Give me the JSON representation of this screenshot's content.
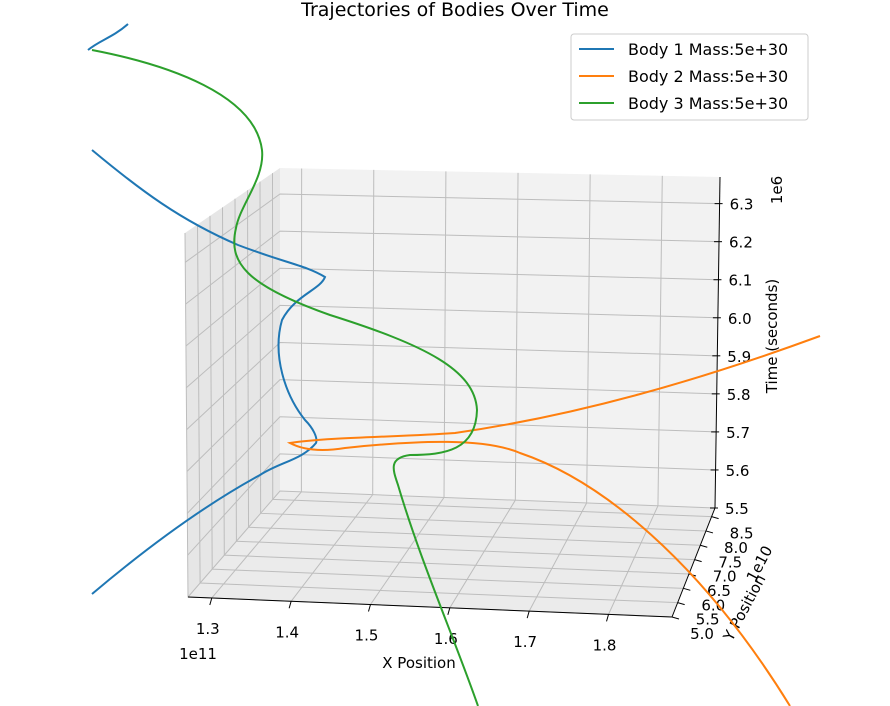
{
  "chart_data": {
    "type": "line",
    "projection": "3d",
    "title": "Trajectories of Bodies Over Time",
    "xlabel": "X Position",
    "ylabel": "Y Position",
    "zlabel": "Time (seconds)",
    "x_offset_label": "1e11",
    "y_offset_label": "1e10",
    "z_offset_label": "1e6",
    "x_ticks": [
      "1.3",
      "1.4",
      "1.5",
      "1.6",
      "1.7",
      "1.8"
    ],
    "y_ticks": [
      "5.0",
      "5.5",
      "6.0",
      "6.5",
      "7.0",
      "7.5",
      "8.0",
      "8.5"
    ],
    "z_ticks": [
      "5.5",
      "5.6",
      "5.7",
      "5.8",
      "5.9",
      "6.0",
      "6.1",
      "6.2",
      "6.3"
    ],
    "xlim": [
      1.27,
      1.88
    ],
    "ylim": [
      5.0,
      8.8
    ],
    "zlim": [
      5.5,
      6.37
    ],
    "grid": true,
    "legend_position": "upper-right",
    "series": [
      {
        "name": "Body 1 Mass:5e+30",
        "color": "#1f77b4"
      },
      {
        "name": "Body 2 Mass:5e+30",
        "color": "#ff7f0e"
      },
      {
        "name": "Body 3 Mass:5e+30",
        "color": "#2ca02c"
      }
    ]
  }
}
